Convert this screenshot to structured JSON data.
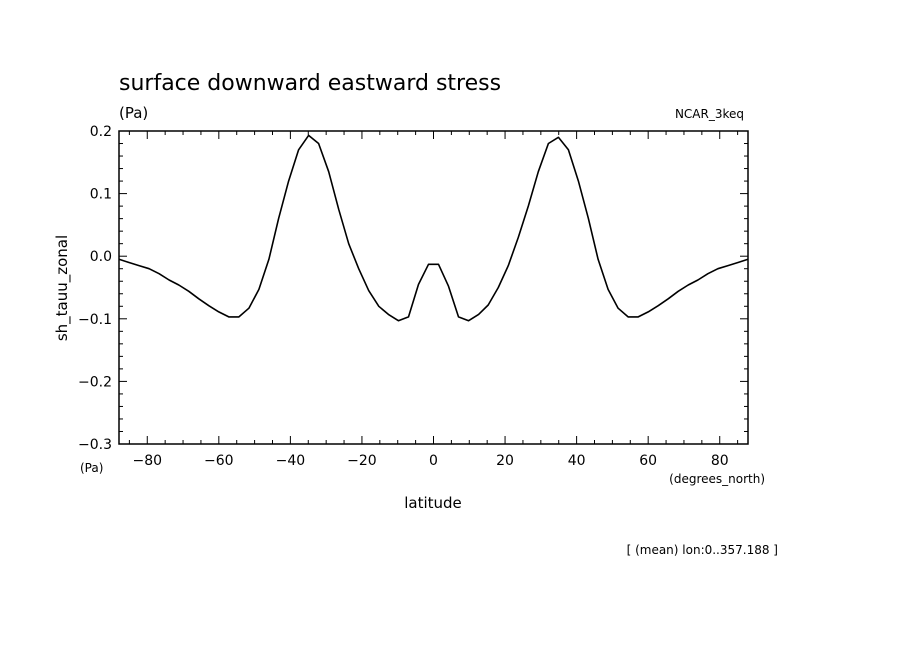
{
  "chart_data": {
    "type": "line",
    "title": "surface downward eastward stress",
    "title_units": "(Pa)",
    "model_label": "NCAR_3keq",
    "ylabel": "sh_tauu_zonal",
    "y_units": "(Pa)",
    "xlabel": "latitude",
    "x_units": "(degrees_north)",
    "footnote": "[ (mean) lon:0..357.188 ]",
    "xlim": [
      -87.9,
      87.9
    ],
    "ylim": [
      -0.3,
      0.2
    ],
    "x_ticks": [
      -80,
      -60,
      -40,
      -20,
      0,
      20,
      40,
      60,
      80
    ],
    "x_tick_labels": [
      "−80",
      "−60",
      "−40",
      "−20",
      "0",
      "20",
      "40",
      "60",
      "80"
    ],
    "y_ticks": [
      -0.3,
      -0.2,
      -0.1,
      0.0,
      0.1,
      0.2
    ],
    "y_tick_labels": [
      "−0.3",
      "−0.2",
      "−0.1",
      "0.0",
      "0.1",
      "0.2"
    ],
    "grid": false,
    "line_color": "#000000",
    "x": [
      -87.9,
      -85.1,
      -82.3,
      -79.5,
      -76.7,
      -73.9,
      -71.2,
      -68.4,
      -65.6,
      -62.8,
      -60.0,
      -57.2,
      -54.4,
      -51.6,
      -48.8,
      -46.0,
      -43.3,
      -40.5,
      -37.7,
      -34.9,
      -32.1,
      -29.3,
      -26.5,
      -23.7,
      -20.9,
      -18.1,
      -15.3,
      -12.6,
      -9.8,
      -7.0,
      -4.2,
      -1.4,
      1.4,
      4.2,
      7.0,
      9.8,
      12.6,
      15.3,
      18.1,
      20.9,
      23.7,
      26.5,
      29.3,
      32.1,
      34.9,
      37.7,
      40.5,
      43.3,
      46.0,
      48.8,
      51.6,
      54.4,
      57.2,
      60.0,
      62.8,
      65.6,
      68.4,
      71.2,
      73.9,
      76.7,
      79.5,
      82.3,
      85.1,
      87.9
    ],
    "y": [
      -0.005,
      -0.01,
      -0.015,
      -0.02,
      -0.028,
      -0.038,
      -0.046,
      -0.056,
      -0.068,
      -0.079,
      -0.089,
      -0.097,
      -0.097,
      -0.083,
      -0.053,
      -0.005,
      0.06,
      0.12,
      0.17,
      0.193,
      0.18,
      0.135,
      0.075,
      0.02,
      -0.02,
      -0.055,
      -0.08,
      -0.093,
      -0.103,
      -0.097,
      -0.045,
      -0.013,
      -0.013,
      -0.048,
      -0.097,
      -0.103,
      -0.093,
      -0.078,
      -0.05,
      -0.015,
      0.03,
      0.08,
      0.135,
      0.18,
      0.19,
      0.17,
      0.12,
      0.06,
      -0.005,
      -0.053,
      -0.083,
      -0.097,
      -0.097,
      -0.089,
      -0.079,
      -0.068,
      -0.056,
      -0.046,
      -0.038,
      -0.028,
      -0.02,
      -0.015,
      -0.01,
      -0.005
    ]
  }
}
